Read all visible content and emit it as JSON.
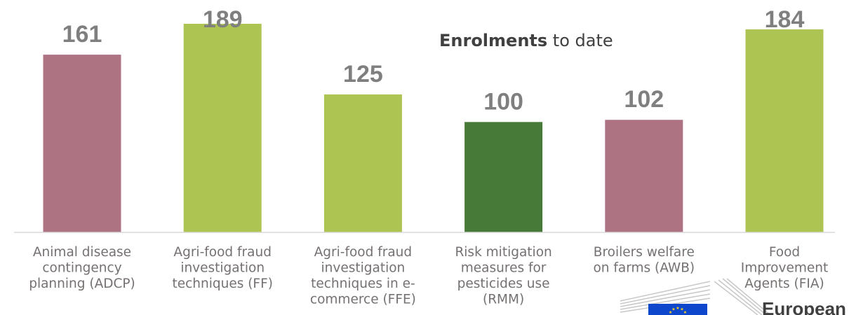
{
  "title": {
    "bold": "Enrolments",
    "rest": " to date"
  },
  "colors": {
    "mauve": "#ad7383",
    "light_green": "#adc453",
    "dark_green": "#477a38",
    "value_text": "#7f7f7f",
    "label_text": "#767171",
    "eu_blue": "#0e47cb",
    "eu_star": "#ffd617"
  },
  "logo": {
    "text": "European"
  },
  "chart_data": {
    "type": "bar",
    "title": "Enrolments to date",
    "categories": [
      "Animal disease contingency planning (ADCP)",
      "Agri-food fraud investigation techniques (FF)",
      "Agri-food fraud investigation techniques in e-commerce (FFE)",
      "Risk mitigation measures for pesticides use (RMM)",
      "Broilers welfare on farms (AWB)",
      "Food Improvement Agents (FIA)"
    ],
    "category_lines": [
      [
        "Animal disease",
        "contingency",
        "planning (ADCP)"
      ],
      [
        "Agri-food fraud",
        "investigation",
        "techniques (FF)"
      ],
      [
        "Agri-food fraud",
        "investigation",
        "techniques in e-",
        "commerce (FFE)"
      ],
      [
        "Risk mitigation",
        "measures for",
        "pesticides use",
        "(RMM)"
      ],
      [
        "Broilers welfare",
        "on farms (AWB)"
      ],
      [
        "Food",
        "Improvement",
        "Agents (FIA)"
      ]
    ],
    "values": [
      161,
      189,
      125,
      100,
      102,
      184
    ],
    "value_labels": [
      "161",
      "189",
      "125",
      "100",
      "102",
      "184"
    ],
    "bar_colors": [
      "#ad7383",
      "#adc453",
      "#adc453",
      "#477a38",
      "#ad7383",
      "#adc453"
    ],
    "xlabel": "",
    "ylabel": "",
    "ylim": [
      0,
      189
    ],
    "grid": false,
    "legend": "none"
  }
}
